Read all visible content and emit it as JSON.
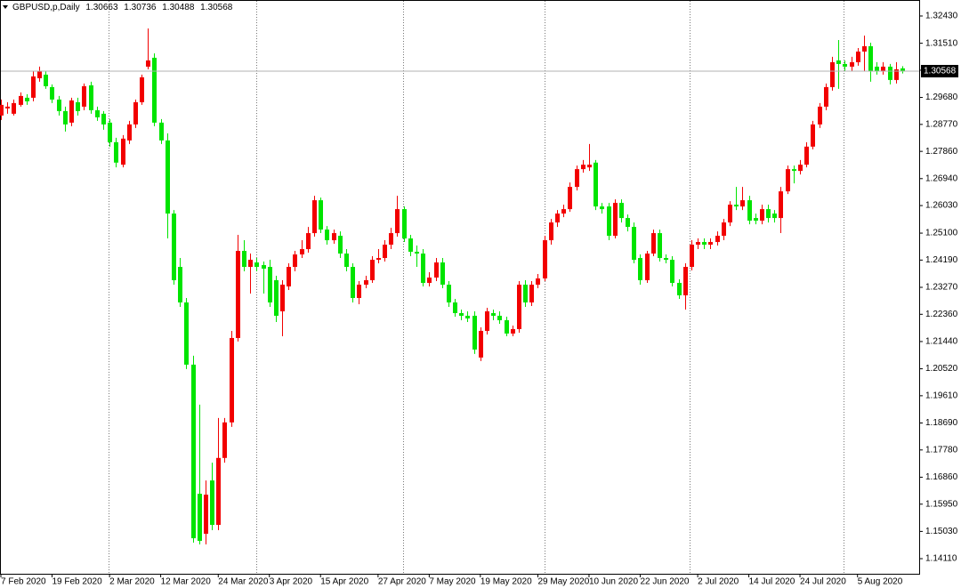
{
  "chart_data": {
    "type": "candlestick",
    "title": "GBPUSD,p,Daily",
    "up_color": "#f20000",
    "down_color": "#00e400",
    "ylim": [
      1.136,
      1.3297
    ],
    "yticks": [
      {
        "value": 1.3243,
        "label": "1.32430"
      },
      {
        "value": 1.3151,
        "label": "1.31510"
      },
      {
        "value": 1.306,
        "label": "1.30600"
      },
      {
        "value": 1.2968,
        "label": "1.29680"
      },
      {
        "value": 1.2877,
        "label": "1.28770"
      },
      {
        "value": 1.2786,
        "label": "1.27860"
      },
      {
        "value": 1.2694,
        "label": "1.26940"
      },
      {
        "value": 1.2603,
        "label": "1.26030"
      },
      {
        "value": 1.251,
        "label": "1.25100"
      },
      {
        "value": 1.2419,
        "label": "1.24190"
      },
      {
        "value": 1.2327,
        "label": "1.23270"
      },
      {
        "value": 1.2236,
        "label": "1.22360"
      },
      {
        "value": 1.2144,
        "label": "1.21440"
      },
      {
        "value": 1.2052,
        "label": "1.20520"
      },
      {
        "value": 1.1961,
        "label": "1.19610"
      },
      {
        "value": 1.1869,
        "label": "1.18690"
      },
      {
        "value": 1.1778,
        "label": "1.17780"
      },
      {
        "value": 1.1686,
        "label": "1.16860"
      },
      {
        "value": 1.1595,
        "label": "1.15950"
      },
      {
        "value": 1.1503,
        "label": "1.15030"
      },
      {
        "value": 1.1411,
        "label": "1.14110"
      }
    ],
    "categories": [
      "7 Feb 2020",
      null,
      null,
      null,
      null,
      null,
      null,
      null,
      "19 Feb 2020",
      null,
      null,
      null,
      null,
      null,
      null,
      null,
      null,
      "2 Mar 2020",
      null,
      null,
      null,
      null,
      null,
      null,
      null,
      "12 Mar 2020",
      null,
      null,
      null,
      null,
      null,
      null,
      null,
      null,
      "24 Mar 2020",
      null,
      null,
      null,
      null,
      null,
      null,
      null,
      "3 Apr 2020",
      null,
      null,
      null,
      null,
      null,
      null,
      null,
      "15 Apr 2020",
      null,
      null,
      null,
      null,
      null,
      null,
      null,
      null,
      "27 Apr 2020",
      null,
      null,
      null,
      null,
      null,
      null,
      null,
      "7 May 2020",
      null,
      null,
      null,
      null,
      null,
      null,
      null,
      "19 May 2020",
      null,
      null,
      null,
      null,
      null,
      null,
      null,
      null,
      "29 May 2020",
      null,
      null,
      null,
      null,
      null,
      null,
      null,
      "10 Jun 2020",
      null,
      null,
      null,
      null,
      null,
      null,
      null,
      "22 Jun 2020",
      null,
      null,
      null,
      null,
      null,
      null,
      null,
      null,
      "2 Jul 2020",
      null,
      null,
      null,
      null,
      null,
      null,
      null,
      "14 Jul 2020",
      null,
      null,
      null,
      null,
      null,
      null,
      null,
      "24 Jul 2020",
      null,
      null,
      null,
      null,
      null,
      null,
      null,
      null,
      "5 Aug 2020",
      null,
      null,
      null,
      null,
      null,
      null,
      null
    ],
    "open": [
      1.2907,
      1.2931,
      1.2913,
      1.2943,
      1.2967,
      1.2967,
      1.3033,
      1.3045,
      1.3003,
      1.2961,
      1.2922,
      1.2883,
      1.2952,
      1.2937,
      1.3009,
      1.2925,
      1.2913,
      1.2883,
      1.2817,
      1.2741,
      1.2823,
      1.2877,
      1.2952,
      1.3072,
      1.3102,
      1.2883,
      1.2823,
      1.2576,
      1.2396,
      1.2276,
      1.2066,
      1.163,
      1.1495,
      1.1675,
      1.1525,
      1.1751,
      1.1871,
      1.2156,
      1.245,
      1.2396,
      1.2411,
      1.2402,
      1.2396,
      1.2351,
      1.2246,
      1.233,
      1.2396,
      1.2438,
      1.2456,
      1.251,
      1.2621,
      1.2522,
      1.2486,
      1.2501,
      1.2441,
      1.2396,
      1.2291,
      1.2336,
      1.2351,
      1.242,
      1.2426,
      1.2471,
      1.251,
      1.2591,
      1.2492,
      1.2447,
      1.2441,
      1.2342,
      1.236,
      1.2411,
      1.2336,
      1.2276,
      1.224,
      1.2231,
      1.2231,
      1.209,
      1.218,
      1.224,
      1.2231,
      1.2216,
      1.2171,
      1.2186,
      1.2336,
      1.2276,
      1.2336,
      1.2357,
      1.2486,
      1.2546,
      1.2576,
      1.2591,
      1.2666,
      1.2726,
      1.2732,
      1.2748,
      1.26,
      1.26,
      1.2501,
      1.2612,
      1.2561,
      1.2531,
      1.2426,
      1.2351,
      1.2441,
      1.251,
      1.2426,
      1.242,
      1.2342,
      1.23,
      1.2396,
      1.2471,
      1.248,
      1.2471,
      1.248,
      1.2501,
      1.2546,
      1.2606,
      1.26,
      1.2621,
      1.2561,
      1.2552,
      1.2591,
      1.2576,
      1.2561,
      1.2651,
      1.2726,
      1.272,
      1.2741,
      1.2802,
      1.2877,
      1.2937,
      1.3003,
      1.3093,
      1.3081,
      1.3072,
      1.3087,
      1.3123,
      1.3141,
      1.3072,
      1.3057,
      1.3072,
      1.3027,
      1.30663
    ],
    "high": [
      1.2961,
      1.2952,
      1.2961,
      1.2985,
      1.2979,
      1.3057,
      1.3072,
      1.3057,
      1.3012,
      1.2973,
      1.2937,
      1.2967,
      1.2967,
      1.3015,
      1.3021,
      1.2937,
      1.2922,
      1.2895,
      1.2832,
      1.2841,
      1.2889,
      1.2961,
      1.3045,
      1.3201,
      1.3117,
      1.2895,
      1.2847,
      1.2588,
      1.2426,
      1.2291,
      1.2096,
      1.1931,
      1.1675,
      1.1735,
      1.1886,
      1.1886,
      1.218,
      1.2504,
      1.2486,
      1.2441,
      1.2426,
      1.2414,
      1.242,
      1.2366,
      1.2351,
      1.2408,
      1.245,
      1.2486,
      1.2531,
      1.2636,
      1.263,
      1.2534,
      1.2522,
      1.2516,
      1.2456,
      1.2408,
      1.2348,
      1.2366,
      1.2432,
      1.2456,
      1.2486,
      1.2528,
      1.2636,
      1.26,
      1.2504,
      1.2468,
      1.2456,
      1.2378,
      1.2426,
      1.2426,
      1.2348,
      1.2288,
      1.2252,
      1.2246,
      1.2246,
      1.2192,
      1.2258,
      1.2252,
      1.2246,
      1.2228,
      1.2198,
      1.2348,
      1.2351,
      1.2348,
      1.2372,
      1.2501,
      1.2558,
      1.2588,
      1.2606,
      1.2681,
      1.2738,
      1.2757,
      1.2811,
      1.2757,
      1.2612,
      1.2612,
      1.2624,
      1.2624,
      1.2573,
      1.2546,
      1.2438,
      1.245,
      1.2522,
      1.2522,
      1.2438,
      1.2432,
      1.2354,
      1.2408,
      1.2486,
      1.2492,
      1.2492,
      1.2492,
      1.2516,
      1.2558,
      1.2618,
      1.2666,
      1.2666,
      1.2636,
      1.2576,
      1.2606,
      1.2606,
      1.2588,
      1.2666,
      1.2738,
      1.2738,
      1.2757,
      1.2817,
      1.2889,
      1.2949,
      1.3015,
      1.3105,
      1.3162,
      1.3093,
      1.3105,
      1.3135,
      1.3177,
      1.3153,
      1.3087,
      1.3087,
      1.3081,
      1.3087,
      1.30736
    ],
    "low": [
      1.2892,
      1.2913,
      1.2907,
      1.2937,
      1.2943,
      1.2955,
      1.3021,
      1.2997,
      1.2949,
      1.2907,
      1.2853,
      1.2871,
      1.2907,
      1.2925,
      1.2913,
      1.2889,
      1.2859,
      1.2802,
      1.2732,
      1.2732,
      1.2811,
      1.2865,
      1.2943,
      1.3063,
      1.2871,
      1.2811,
      1.2492,
      1.2336,
      1.2261,
      1.2051,
      1.1465,
      1.1459,
      1.1459,
      1.1507,
      1.1507,
      1.1735,
      1.1856,
      1.2144,
      1.2381,
      1.2306,
      1.2381,
      1.2306,
      1.2261,
      1.221,
      1.2162,
      1.2318,
      1.2381,
      1.2426,
      1.2444,
      1.2498,
      1.251,
      1.2471,
      1.2474,
      1.2426,
      1.2381,
      1.2276,
      1.227,
      1.2324,
      1.2342,
      1.2408,
      1.2414,
      1.2456,
      1.2498,
      1.248,
      1.2432,
      1.2396,
      1.233,
      1.233,
      1.2348,
      1.2324,
      1.2261,
      1.2228,
      1.2216,
      1.221,
      1.2102,
      1.2078,
      1.2168,
      1.2216,
      1.2204,
      1.2162,
      1.2162,
      1.2174,
      1.2261,
      1.2264,
      1.2324,
      1.2348,
      1.2471,
      1.2531,
      1.2564,
      1.2582,
      1.2654,
      1.2714,
      1.272,
      1.2588,
      1.2576,
      1.2486,
      1.2492,
      1.2546,
      1.2516,
      1.2408,
      1.2336,
      1.2342,
      1.2432,
      1.2414,
      1.2408,
      1.233,
      1.2288,
      1.2252,
      1.2384,
      1.2456,
      1.2456,
      1.2456,
      1.2468,
      1.2486,
      1.2534,
      1.2588,
      1.2588,
      1.254,
      1.254,
      1.254,
      1.2546,
      1.2546,
      1.251,
      1.2642,
      1.2678,
      1.2708,
      1.2732,
      1.2793,
      1.2865,
      1.2925,
      1.2991,
      1.2997,
      1.3057,
      1.3057,
      1.3075,
      1.3057,
      1.3021,
      1.3045,
      1.3045,
      1.3012,
      1.3015,
      1.30488
    ],
    "close": [
      1.2943,
      1.2937,
      1.2949,
      1.2973,
      1.2955,
      1.3039,
      1.3057,
      1.3006,
      1.2961,
      1.2922,
      1.2877,
      1.2958,
      1.2922,
      1.3006,
      1.2925,
      1.2901,
      1.2877,
      1.2817,
      1.2748,
      1.2829,
      1.2877,
      1.2952,
      1.3036,
      1.3093,
      1.2883,
      1.2823,
      1.2576,
      1.2351,
      1.2276,
      1.2066,
      1.148,
      1.1471,
      1.1627,
      1.1525,
      1.1751,
      1.1871,
      1.2156,
      1.245,
      1.2396,
      1.242,
      1.2396,
      1.239,
      1.2276,
      1.2231,
      1.2336,
      1.2396,
      1.2438,
      1.2456,
      1.251,
      1.2621,
      1.2522,
      1.2486,
      1.251,
      1.2441,
      1.2396,
      1.2291,
      1.2336,
      1.2351,
      1.242,
      1.2426,
      1.2471,
      1.251,
      1.2591,
      1.2492,
      1.2447,
      1.2441,
      1.2342,
      1.236,
      1.2411,
      1.2336,
      1.2276,
      1.224,
      1.2231,
      1.2222,
      1.2117,
      1.218,
      1.2246,
      1.2231,
      1.2216,
      1.2171,
      1.2186,
      1.2336,
      1.2276,
      1.2336,
      1.2357,
      1.2486,
      1.2546,
      1.2576,
      1.2591,
      1.2666,
      1.2726,
      1.2741,
      1.2741,
      1.26,
      1.2591,
      1.2501,
      1.2612,
      1.2561,
      1.2531,
      1.242,
      1.2351,
      1.2441,
      1.251,
      1.2426,
      1.242,
      1.2342,
      1.23,
      1.2396,
      1.2471,
      1.248,
      1.2471,
      1.248,
      1.2501,
      1.2546,
      1.2606,
      1.26,
      1.2621,
      1.2552,
      1.2552,
      1.2591,
      1.2561,
      1.2561,
      1.2651,
      1.2726,
      1.272,
      1.2741,
      1.2802,
      1.2877,
      1.2937,
      1.3003,
      1.3087,
      1.3081,
      1.3072,
      1.3087,
      1.3123,
      1.3141,
      1.3057,
      1.3057,
      1.3072,
      1.3027,
      1.3063,
      1.30568
    ]
  }
}
